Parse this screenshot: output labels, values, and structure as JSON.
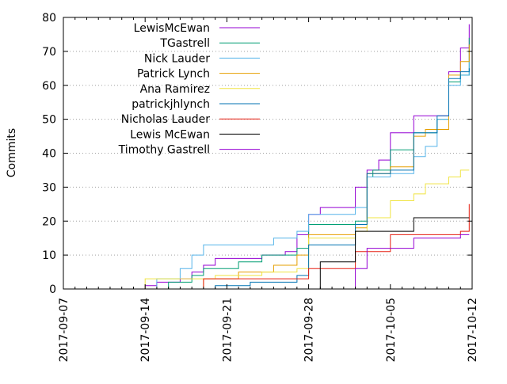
{
  "chart_data": {
    "type": "line",
    "title": "",
    "xlabel": "",
    "ylabel": "Commits",
    "xlim": [
      "2017-09-07",
      "2017-10-12"
    ],
    "ylim": [
      0,
      80
    ],
    "x_ticks": [
      "2017-09-07",
      "2017-09-14",
      "2017-09-21",
      "2017-09-28",
      "2017-10-05",
      "2017-10-12"
    ],
    "y_ticks": [
      0,
      10,
      20,
      30,
      40,
      50,
      60,
      70,
      80
    ],
    "grid": true,
    "legend_position": "top-left",
    "step": true,
    "series": [
      {
        "name": "LewisMcEwan",
        "color": "#9400d3",
        "points": [
          [
            "2017-09-13",
            0
          ],
          [
            "2017-09-14",
            1
          ],
          [
            "2017-09-15",
            2
          ],
          [
            "2017-09-17",
            3
          ],
          [
            "2017-09-18",
            5
          ],
          [
            "2017-09-19",
            7
          ],
          [
            "2017-09-20",
            9
          ],
          [
            "2017-09-24",
            10
          ],
          [
            "2017-09-26",
            11
          ],
          [
            "2017-09-27",
            16
          ],
          [
            "2017-09-28",
            22
          ],
          [
            "2017-09-29",
            24
          ],
          [
            "2017-10-02",
            30
          ],
          [
            "2017-10-03",
            35
          ],
          [
            "2017-10-04",
            38
          ],
          [
            "2017-10-05",
            46
          ],
          [
            "2017-10-07",
            51
          ],
          [
            "2017-10-10",
            64
          ],
          [
            "2017-10-11",
            71
          ],
          [
            "2017-10-11 18:00",
            78
          ]
        ]
      },
      {
        "name": "TGastrell",
        "color": "#009e73",
        "points": [
          [
            "2017-09-14",
            0
          ],
          [
            "2017-09-16",
            2
          ],
          [
            "2017-09-18",
            4
          ],
          [
            "2017-09-19",
            6
          ],
          [
            "2017-09-22",
            8
          ],
          [
            "2017-09-24",
            10
          ],
          [
            "2017-09-27",
            12
          ],
          [
            "2017-09-28",
            19
          ],
          [
            "2017-10-02",
            20
          ],
          [
            "2017-10-03",
            33
          ],
          [
            "2017-10-03 12:00",
            35
          ],
          [
            "2017-10-05",
            41
          ],
          [
            "2017-10-07",
            46
          ],
          [
            "2017-10-09",
            50
          ],
          [
            "2017-10-10",
            61
          ],
          [
            "2017-10-11",
            63
          ],
          [
            "2017-10-11 18:00",
            74
          ]
        ]
      },
      {
        "name": "Nick Lauder",
        "color": "#56b4e9",
        "points": [
          [
            "2017-09-14",
            0
          ],
          [
            "2017-09-15",
            3
          ],
          [
            "2017-09-17",
            6
          ],
          [
            "2017-09-18",
            10
          ],
          [
            "2017-09-19",
            13
          ],
          [
            "2017-09-25",
            15
          ],
          [
            "2017-09-27",
            17
          ],
          [
            "2017-09-28",
            22
          ],
          [
            "2017-10-02",
            24
          ],
          [
            "2017-10-03",
            33
          ],
          [
            "2017-10-05",
            34
          ],
          [
            "2017-10-07",
            39
          ],
          [
            "2017-10-08",
            42
          ],
          [
            "2017-10-09",
            50
          ],
          [
            "2017-10-10",
            60
          ],
          [
            "2017-10-11",
            63
          ],
          [
            "2017-10-11 18:00",
            70
          ]
        ]
      },
      {
        "name": "Patrick Lynch",
        "color": "#e69f00",
        "points": [
          [
            "2017-09-18",
            0
          ],
          [
            "2017-09-19",
            3
          ],
          [
            "2017-09-22",
            5
          ],
          [
            "2017-09-25",
            7
          ],
          [
            "2017-09-27",
            10
          ],
          [
            "2017-09-28",
            16
          ],
          [
            "2017-10-02",
            18
          ],
          [
            "2017-10-03",
            34
          ],
          [
            "2017-10-05",
            36
          ],
          [
            "2017-10-07",
            45
          ],
          [
            "2017-10-08",
            47
          ],
          [
            "2017-10-10",
            63
          ],
          [
            "2017-10-11",
            67
          ],
          [
            "2017-10-11 18:00",
            72
          ]
        ]
      },
      {
        "name": "Ana Ramirez",
        "color": "#f0e442",
        "points": [
          [
            "2017-09-13",
            0
          ],
          [
            "2017-09-14",
            3
          ],
          [
            "2017-09-20",
            4
          ],
          [
            "2017-09-24",
            5
          ],
          [
            "2017-09-27",
            6
          ],
          [
            "2017-09-28",
            15
          ],
          [
            "2017-10-02",
            17
          ],
          [
            "2017-10-03",
            21
          ],
          [
            "2017-10-05",
            26
          ],
          [
            "2017-10-07",
            28
          ],
          [
            "2017-10-08",
            31
          ],
          [
            "2017-10-10",
            33
          ],
          [
            "2017-10-11",
            35
          ],
          [
            "2017-10-11 18:00",
            35
          ]
        ]
      },
      {
        "name": "patrickjhlynch",
        "color": "#0072b2",
        "points": [
          [
            "2017-09-19",
            0
          ],
          [
            "2017-09-20",
            1
          ],
          [
            "2017-09-23",
            2
          ],
          [
            "2017-09-27",
            4
          ],
          [
            "2017-09-28",
            13
          ],
          [
            "2017-10-02",
            19
          ],
          [
            "2017-10-03",
            34
          ],
          [
            "2017-10-05",
            35
          ],
          [
            "2017-10-07",
            46
          ],
          [
            "2017-10-09",
            51
          ],
          [
            "2017-10-10",
            62
          ],
          [
            "2017-10-11",
            64
          ],
          [
            "2017-10-11 18:00",
            65
          ]
        ]
      },
      {
        "name": "Nicholas Lauder",
        "color": "#e51e10",
        "points": [
          [
            "2017-09-18",
            0
          ],
          [
            "2017-09-19",
            3
          ],
          [
            "2017-09-28",
            6
          ],
          [
            "2017-10-02",
            11
          ],
          [
            "2017-10-05",
            16
          ],
          [
            "2017-10-11",
            17
          ],
          [
            "2017-10-11 18:00",
            25
          ]
        ]
      },
      {
        "name": "Lewis McEwan",
        "color": "#000000",
        "points": [
          [
            "2017-09-28",
            0
          ],
          [
            "2017-09-29",
            8
          ],
          [
            "2017-10-02",
            17
          ],
          [
            "2017-10-07",
            21
          ],
          [
            "2017-10-11 18:00",
            21
          ]
        ]
      },
      {
        "name": "Timothy Gastrell",
        "color": "#9400d3",
        "points": [
          [
            "2017-09-28",
            0
          ],
          [
            "2017-10-02",
            6
          ],
          [
            "2017-10-03",
            12
          ],
          [
            "2017-10-07",
            15
          ],
          [
            "2017-10-11",
            16
          ],
          [
            "2017-10-11 18:00",
            16
          ]
        ]
      }
    ]
  }
}
